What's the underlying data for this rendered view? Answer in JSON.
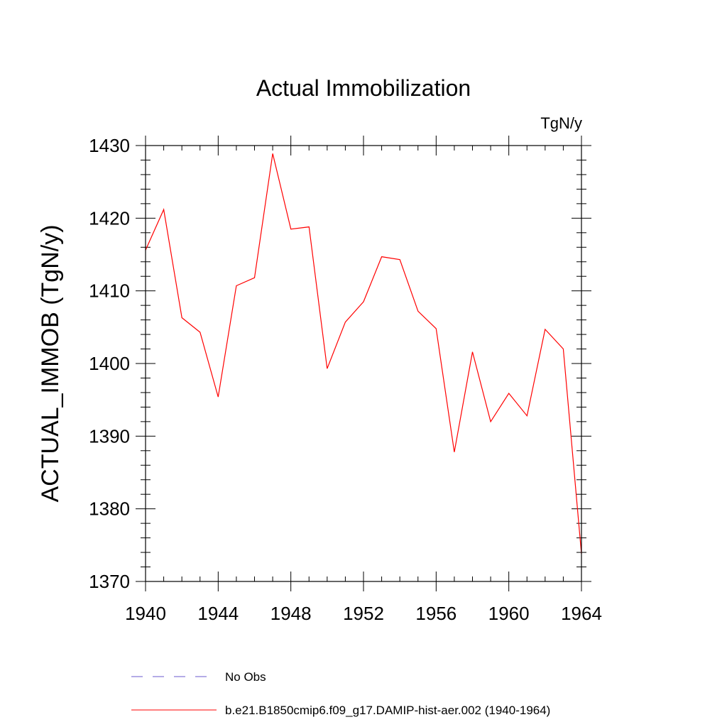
{
  "chart_data": {
    "type": "line",
    "title": "Actual Immobilization",
    "units_label": "TgN/y",
    "ylabel": "ACTUAL_IMMOB  (TgN/y)",
    "xlabel": "",
    "xlim": [
      1940,
      1964
    ],
    "ylim": [
      1370,
      1430
    ],
    "x_ticks": [
      1940,
      1944,
      1948,
      1952,
      1956,
      1960,
      1964
    ],
    "y_ticks": [
      1370,
      1380,
      1390,
      1400,
      1410,
      1420,
      1430
    ],
    "grid": false,
    "legend_position": "bottom",
    "x": [
      1940,
      1941,
      1942,
      1943,
      1944,
      1945,
      1946,
      1947,
      1948,
      1949,
      1950,
      1951,
      1952,
      1953,
      1954,
      1955,
      1956,
      1957,
      1958,
      1959,
      1960,
      1961,
      1962,
      1963,
      1964
    ],
    "series": [
      {
        "name": "b.e21.B1850cmip6.f09_g17.DAMIP-hist-aer.002 (1940-1964)",
        "color": "#ff0000",
        "style": "solid",
        "values": [
          1415.6,
          1421.2,
          1406.3,
          1404.3,
          1395.4,
          1410.7,
          1411.8,
          1428.9,
          1418.5,
          1418.8,
          1399.3,
          1405.7,
          1408.5,
          1414.7,
          1414.3,
          1407.2,
          1404.8,
          1387.8,
          1401.6,
          1392.0,
          1395.9,
          1392.8,
          1404.7,
          1402.0,
          1373.8
        ]
      }
    ],
    "legend": [
      {
        "label": "No Obs",
        "color": "#6a5acd",
        "style": "dashed"
      },
      {
        "label": "b.e21.B1850cmip6.f09_g17.DAMIP-hist-aer.002 (1940-1964)",
        "color": "#ff0000",
        "style": "solid"
      }
    ]
  }
}
